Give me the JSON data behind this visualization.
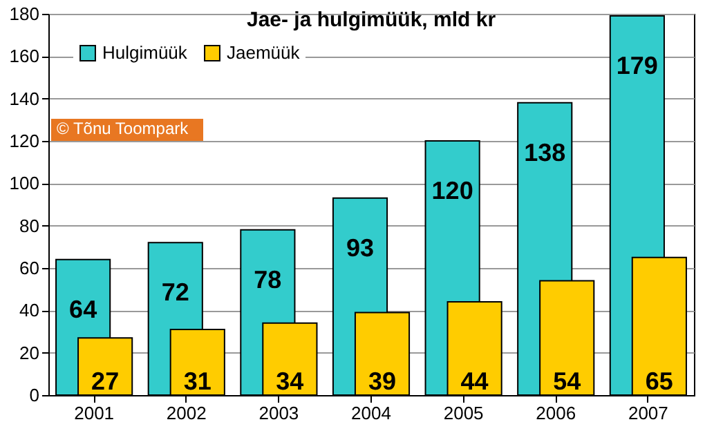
{
  "chart_data": {
    "type": "bar",
    "title": "Jae- ja hulgimüük, mld kr",
    "categories": [
      "2001",
      "2002",
      "2003",
      "2004",
      "2005",
      "2006",
      "2007"
    ],
    "series": [
      {
        "name": "Hulgimüük",
        "color": "#33cccc",
        "values": [
          64,
          72,
          78,
          93,
          120,
          138,
          179
        ]
      },
      {
        "name": "Jaemüük",
        "color": "#ffcc00",
        "values": [
          27,
          31,
          34,
          39,
          44,
          54,
          65
        ]
      }
    ],
    "ylim": [
      0,
      180
    ],
    "yticks": [
      0,
      20,
      40,
      60,
      80,
      100,
      120,
      140,
      160,
      180
    ],
    "grid": "y",
    "legend": "top left",
    "data_labels": true,
    "annotations": [
      "© Tõnu Toompark"
    ]
  }
}
